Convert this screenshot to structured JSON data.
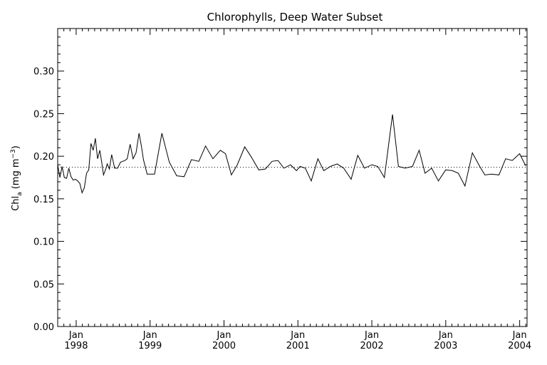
{
  "chart_data": {
    "type": "line",
    "title": "Chlorophylls, Deep Water Subset",
    "ylabel": {
      "main": "Chl",
      "subscript": "a",
      "units_open": " (mg m",
      "units_sup": "−3",
      "units_close": ")"
    },
    "xlabel": "",
    "ylim": [
      0.0,
      0.35
    ],
    "xlim": [
      1997.75,
      2004.1
    ],
    "grid": false,
    "legend": "none",
    "line_color": "#000000",
    "y_ticks": [
      {
        "value": 0.0,
        "label": "0.00"
      },
      {
        "value": 0.05,
        "label": "0.05"
      },
      {
        "value": 0.1,
        "label": "0.10"
      },
      {
        "value": 0.15,
        "label": "0.15"
      },
      {
        "value": 0.2,
        "label": "0.20"
      },
      {
        "value": 0.25,
        "label": "0.25"
      },
      {
        "value": 0.3,
        "label": "0.30"
      }
    ],
    "x_ticks": [
      {
        "value": 1998.0,
        "month": "Jan",
        "year": "1998"
      },
      {
        "value": 1999.0,
        "month": "Jan",
        "year": "1999"
      },
      {
        "value": 2000.0,
        "month": "Jan",
        "year": "2000"
      },
      {
        "value": 2001.0,
        "month": "Jan",
        "year": "2001"
      },
      {
        "value": 2002.0,
        "month": "Jan",
        "year": "2002"
      },
      {
        "value": 2003.0,
        "month": "Jan",
        "year": "2003"
      },
      {
        "value": 2004.0,
        "month": "Jan",
        "year": "2004"
      }
    ],
    "mean_line": {
      "value": 0.187,
      "style": "dotted"
    },
    "series": [
      {
        "x": [
          1997.75,
          1997.78,
          1997.81,
          1997.84,
          1997.87,
          1997.9,
          1997.93,
          1997.96,
          1997.99,
          1998.02,
          1998.05,
          1998.08,
          1998.11,
          1998.14,
          1998.17,
          1998.2,
          1998.23,
          1998.26,
          1998.29,
          1998.32,
          1998.35,
          1998.37,
          1998.4,
          1998.42,
          1998.45,
          1998.48,
          1998.52,
          1998.56,
          1998.6,
          1998.63,
          1998.66,
          1998.69,
          1998.73,
          1998.77,
          1998.81,
          1998.85,
          1998.88,
          1998.91,
          1998.96,
          1999.06,
          1999.16,
          1999.26,
          1999.36,
          1999.46,
          1999.56,
          1999.66,
          1999.75,
          1999.85,
          1999.95,
          2000.02,
          2000.1,
          2000.18,
          2000.28,
          2000.37,
          2000.47,
          2000.56,
          2000.65,
          2000.73,
          2000.81,
          2000.9,
          2000.98,
          2001.03,
          2001.1,
          2001.18,
          2001.27,
          2001.35,
          2001.44,
          2001.53,
          2001.62,
          2001.72,
          2001.81,
          2001.9,
          2002.0,
          2002.08,
          2002.17,
          2002.28,
          2002.36,
          2002.45,
          2002.55,
          2002.64,
          2002.72,
          2002.81,
          2002.9,
          2003.0,
          2003.09,
          2003.17,
          2003.26,
          2003.36,
          2003.46,
          2003.53,
          2003.62,
          2003.72,
          2003.81,
          2003.9,
          2004.0,
          2004.08
        ],
        "values": [
          0.19,
          0.175,
          0.188,
          0.175,
          0.174,
          0.186,
          0.176,
          0.172,
          0.173,
          0.171,
          0.168,
          0.157,
          0.163,
          0.18,
          0.184,
          0.215,
          0.207,
          0.221,
          0.197,
          0.207,
          0.19,
          0.178,
          0.185,
          0.191,
          0.185,
          0.202,
          0.186,
          0.186,
          0.193,
          0.194,
          0.195,
          0.197,
          0.214,
          0.197,
          0.204,
          0.227,
          0.213,
          0.196,
          0.179,
          0.179,
          0.227,
          0.193,
          0.177,
          0.176,
          0.196,
          0.194,
          0.212,
          0.197,
          0.207,
          0.203,
          0.178,
          0.19,
          0.211,
          0.199,
          0.184,
          0.185,
          0.194,
          0.195,
          0.186,
          0.19,
          0.183,
          0.188,
          0.186,
          0.171,
          0.197,
          0.183,
          0.188,
          0.191,
          0.186,
          0.173,
          0.201,
          0.186,
          0.19,
          0.188,
          0.175,
          0.249,
          0.188,
          0.186,
          0.188,
          0.207,
          0.18,
          0.186,
          0.171,
          0.184,
          0.183,
          0.18,
          0.165,
          0.204,
          0.188,
          0.178,
          0.179,
          0.178,
          0.197,
          0.195,
          0.203,
          0.189
        ]
      }
    ]
  }
}
